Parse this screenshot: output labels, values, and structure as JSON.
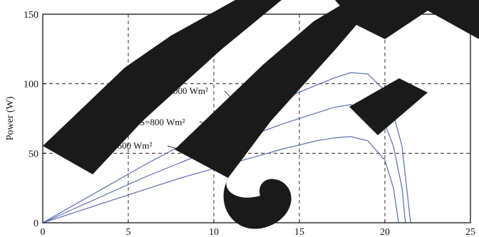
{
  "chart_data": {
    "type": "line",
    "title": "",
    "xlabel": "",
    "ylabel": "Power (W)",
    "xlim": [
      0,
      25
    ],
    "ylim": [
      0,
      150
    ],
    "grid": true,
    "grid_style": "dashed",
    "xticks": [
      {
        "value": 0,
        "label": "0"
      },
      {
        "value": 5,
        "label": "5"
      },
      {
        "value": 10,
        "label": "10"
      },
      {
        "value": 15,
        "label": "15"
      },
      {
        "value": 20,
        "label": "20"
      },
      {
        "value": 25,
        "label": "25"
      }
    ],
    "yticks": [
      {
        "value": 0,
        "label": "0"
      },
      {
        "value": 50,
        "label": "50"
      },
      {
        "value": 100,
        "label": "100"
      },
      {
        "value": 150,
        "label": "150"
      }
    ],
    "line_color": "#5b6db3",
    "series": [
      {
        "name": "S=1000 W/m²",
        "x": [
          0,
          2,
          4,
          6,
          8,
          10,
          12,
          14,
          16,
          17,
          18,
          19,
          20,
          20.5,
          21,
          21.5
        ],
        "y": [
          0,
          14,
          28,
          42,
          55,
          67,
          78,
          89,
          99,
          104,
          108,
          107,
          95,
          78,
          55,
          0
        ]
      },
      {
        "name": "S=800 W/m²",
        "x": [
          0,
          2,
          4,
          6,
          8,
          10,
          12,
          14,
          16,
          17,
          18,
          19,
          20,
          20.5,
          21,
          21.2
        ],
        "y": [
          0,
          11,
          22,
          33,
          43,
          53,
          62,
          71,
          79,
          83,
          85,
          82,
          71,
          55,
          25,
          0
        ]
      },
      {
        "name": "S=600 W/m²",
        "x": [
          0,
          2,
          4,
          6,
          8,
          10,
          12,
          14,
          16,
          17,
          18,
          19,
          20,
          20.5,
          20.8
        ],
        "y": [
          0,
          8,
          16,
          24,
          32,
          39,
          46,
          53,
          59,
          61,
          62,
          59,
          45,
          25,
          0
        ]
      }
    ],
    "annotations": [
      {
        "text": "S=1000 Wm²",
        "series_index": 0,
        "target": [
          12.0,
          78
        ]
      },
      {
        "text": "S=800 Wm²",
        "series_index": 1,
        "target": [
          12.0,
          62
        ]
      },
      {
        "text": "S=600 Wm²",
        "series_index": 2,
        "target": [
          11.0,
          42
        ]
      }
    ]
  },
  "watermark": {
    "letters": "IJE",
    "color": "#1a1a1a"
  }
}
